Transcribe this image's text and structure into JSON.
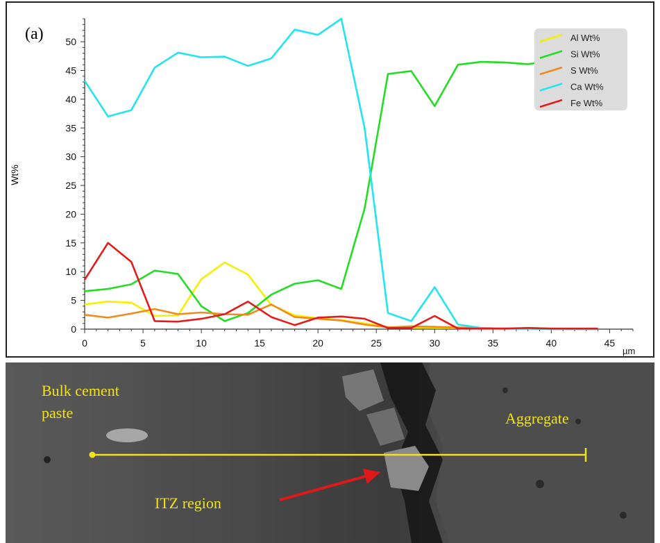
{
  "panel_label": "(a)",
  "chart_data": {
    "type": "line",
    "title": "",
    "xlabel": "µm",
    "ylabel": "Wt%",
    "xlim": [
      0,
      47
    ],
    "ylim": [
      0,
      54
    ],
    "x_ticks": [
      0,
      5,
      10,
      15,
      20,
      25,
      30,
      35,
      40,
      45
    ],
    "y_ticks": [
      0,
      5,
      10,
      15,
      20,
      25,
      30,
      35,
      40,
      45,
      50
    ],
    "x": [
      0,
      2,
      4,
      6,
      8,
      10,
      12,
      14,
      16,
      18,
      20,
      22,
      24,
      26,
      28,
      30,
      32,
      34,
      36,
      38,
      40,
      42,
      44
    ],
    "legend_position": "top-right",
    "grid": false,
    "series": [
      {
        "name": "Al Wt%",
        "color": "#f5f000",
        "values": [
          4.3,
          4.8,
          4.6,
          2.3,
          2.4,
          8.7,
          11.6,
          9.5,
          4.2,
          2.4,
          1.9,
          1.6,
          1.0,
          0.4,
          0.3,
          0.2,
          0.2,
          0.1,
          0.1,
          0.1,
          0.1,
          0.0,
          0.0
        ]
      },
      {
        "name": "Si Wt%",
        "color": "#22dd22",
        "values": [
          6.6,
          7.0,
          7.8,
          10.2,
          9.6,
          4.0,
          1.4,
          2.8,
          6.0,
          7.9,
          8.5,
          7.0,
          21.0,
          44.4,
          44.9,
          38.8,
          46.0,
          46.5,
          46.4,
          46.1,
          46.7,
          46.6,
          46.5
        ]
      },
      {
        "name": "S Wt%",
        "color": "#f08a1c",
        "values": [
          2.5,
          2.0,
          2.7,
          3.5,
          2.6,
          2.9,
          2.6,
          2.5,
          4.3,
          2.1,
          1.8,
          1.5,
          0.8,
          0.3,
          0.5,
          0.4,
          0.3,
          0.2,
          0.1,
          0.1,
          0.0,
          0.0,
          0.0
        ]
      },
      {
        "name": "Ca Wt%",
        "color": "#22e4ee",
        "values": [
          43.2,
          37.0,
          38.1,
          45.5,
          48.1,
          47.3,
          47.4,
          45.8,
          47.1,
          52.1,
          51.2,
          54.0,
          35.0,
          2.8,
          1.4,
          7.3,
          0.8,
          0.2,
          0.1,
          0.1,
          0.0,
          0.0,
          0.0
        ]
      },
      {
        "name": "Fe Wt%",
        "color": "#e51b1b",
        "values": [
          8.6,
          15.0,
          11.7,
          1.4,
          1.3,
          1.8,
          2.6,
          4.8,
          2.1,
          0.7,
          2.0,
          2.2,
          1.8,
          0.2,
          0.2,
          2.3,
          0.1,
          0.1,
          0.1,
          0.2,
          0.1,
          0.1,
          0.1
        ]
      }
    ]
  },
  "sem_image": {
    "labels": {
      "bulk_line1": "Bulk cement",
      "bulk_line2": "paste",
      "aggregate": "Aggregate",
      "itz": "ITZ region"
    },
    "scan_line_color": "#f2e21a",
    "arrow_color": "#e01818"
  }
}
